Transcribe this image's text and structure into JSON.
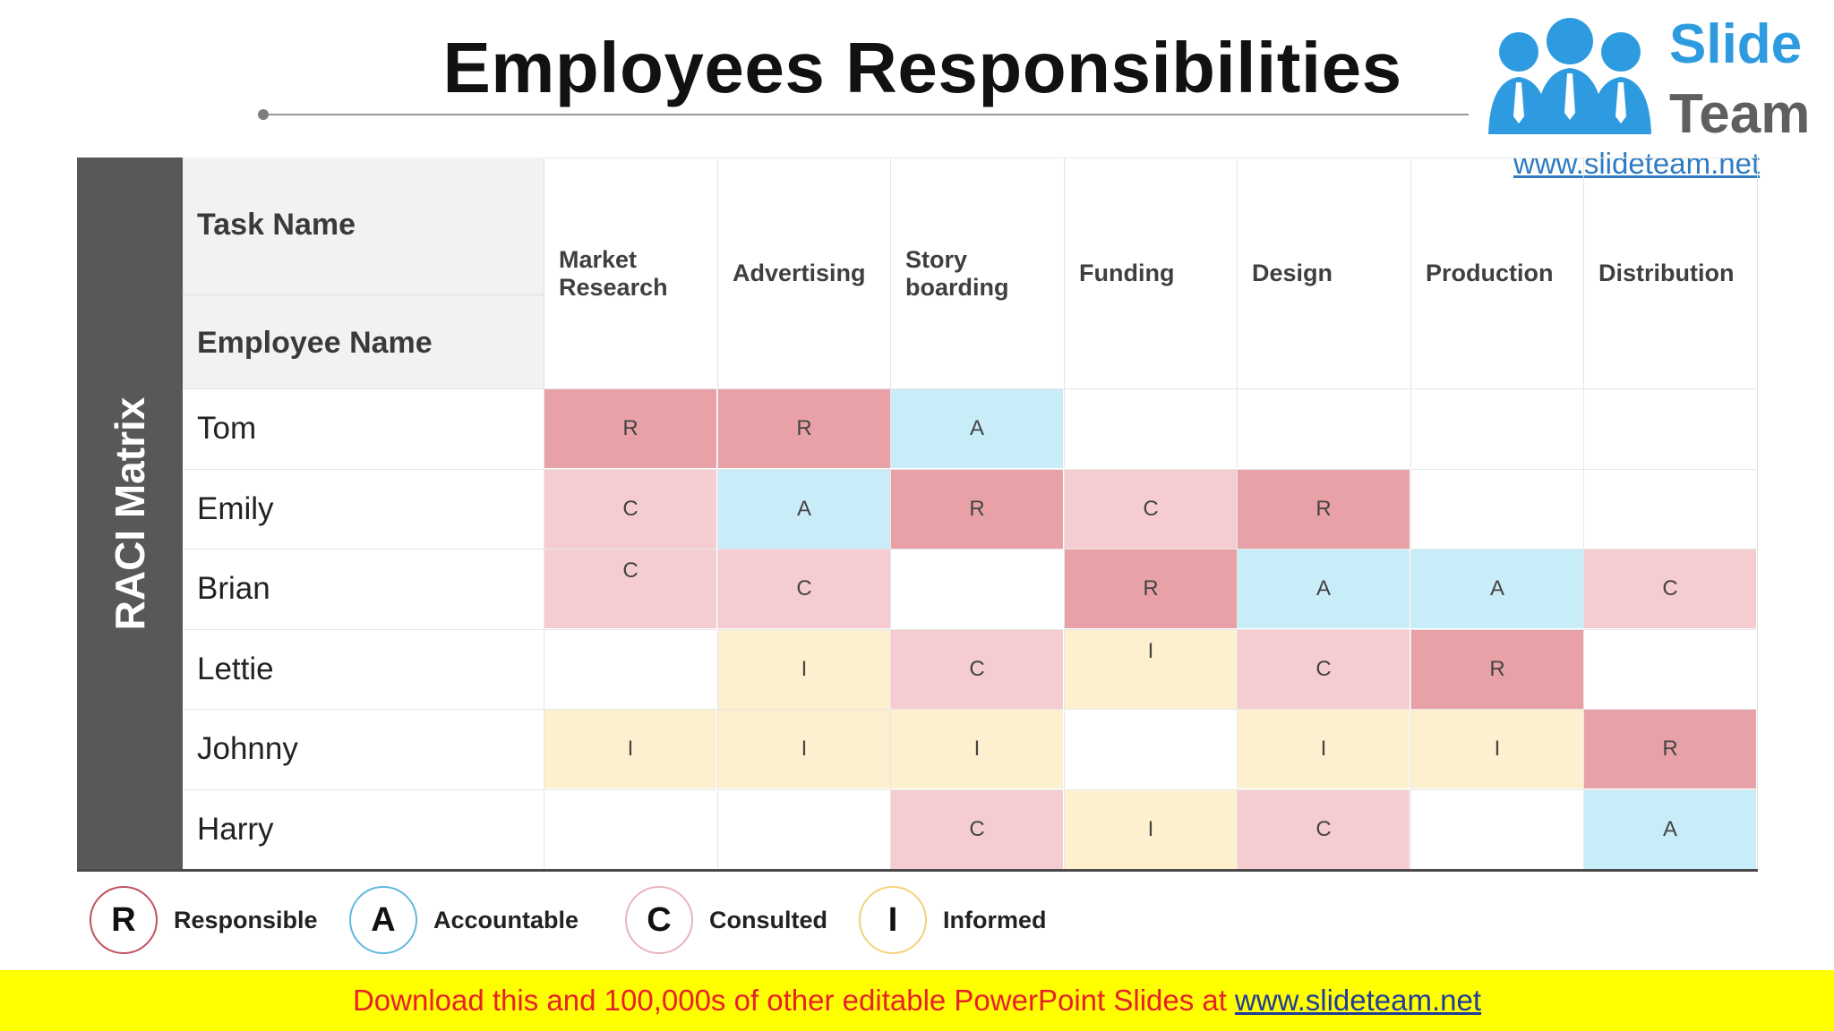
{
  "title": "Employees Responsibilities",
  "logo": {
    "line1": "Slide",
    "line2": "Team",
    "url": "www.slideteam.net",
    "icon": "people-icon"
  },
  "side_label": "RACI Matrix",
  "header": {
    "task_name": "Task Name",
    "employee_name": "Employee Name"
  },
  "tasks": [
    "Market\nResearch",
    "Advertising",
    "Story\nboarding",
    "Funding",
    "Design",
    "Production",
    "Distribution"
  ],
  "rows": [
    {
      "name": "Tom",
      "cells": [
        "R",
        "R",
        "A",
        "",
        "",
        "",
        ""
      ]
    },
    {
      "name": "Emily",
      "cells": [
        "C",
        "A",
        "R",
        "C",
        "R",
        "",
        ""
      ]
    },
    {
      "name": "Brian",
      "cells": [
        "C",
        "C",
        "",
        "R",
        "A",
        "A",
        "C"
      ]
    },
    {
      "name": "Lettie",
      "cells": [
        "",
        "I",
        "C",
        "I",
        "C",
        "R",
        ""
      ]
    },
    {
      "name": "Johnny",
      "cells": [
        "I",
        "I",
        "I",
        "",
        "I",
        "I",
        "R"
      ]
    },
    {
      "name": "Harry",
      "cells": [
        "",
        "",
        "C",
        "I",
        "C",
        "",
        "A"
      ]
    }
  ],
  "legend": [
    {
      "letter": "R",
      "label": "Responsible",
      "color": "#c0505a"
    },
    {
      "letter": "A",
      "label": "Accountable",
      "color": "#5fb8e0"
    },
    {
      "letter": "C",
      "label": "Consulted",
      "color": "#e8b4ba"
    },
    {
      "letter": "I",
      "label": "Informed",
      "color": "#f2d27a"
    }
  ],
  "colors": {
    "R": "#e8a2a7",
    "A": "#c9edf8",
    "C": "#f5cdd1",
    "I": "#fdf0cf"
  },
  "footer": {
    "text": "Download this and 100,000s of other editable PowerPoint Slides at",
    "link": "www.slideteam.net"
  }
}
